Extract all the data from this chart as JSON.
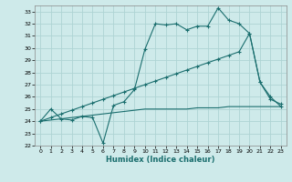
{
  "xlabel": "Humidex (Indice chaleur)",
  "bg_color": "#ceeaea",
  "grid_color": "#aed4d4",
  "line_color": "#1a6e6e",
  "ylim": [
    22,
    33.5
  ],
  "xlim": [
    -0.5,
    23.5
  ],
  "yticks": [
    22,
    23,
    24,
    25,
    26,
    27,
    28,
    29,
    30,
    31,
    32,
    33
  ],
  "xticks": [
    0,
    1,
    2,
    3,
    4,
    5,
    6,
    7,
    8,
    9,
    10,
    11,
    12,
    13,
    14,
    15,
    16,
    17,
    18,
    19,
    20,
    21,
    22,
    23
  ],
  "series1_x": [
    0,
    1,
    2,
    3,
    4,
    5,
    6,
    7,
    8,
    9,
    10,
    11,
    12,
    13,
    14,
    15,
    16,
    17,
    18,
    19,
    20,
    21,
    22,
    23
  ],
  "series1_y": [
    24.0,
    25.0,
    24.2,
    24.1,
    24.4,
    24.3,
    22.2,
    25.3,
    25.6,
    26.6,
    29.9,
    32.0,
    31.9,
    32.0,
    31.5,
    31.8,
    31.8,
    33.3,
    32.3,
    32.0,
    31.2,
    27.2,
    26.0,
    25.2
  ],
  "series2_x": [
    0,
    1,
    2,
    3,
    4,
    5,
    6,
    7,
    8,
    9,
    10,
    11,
    12,
    13,
    14,
    15,
    16,
    17,
    18,
    19,
    20,
    21,
    22,
    23
  ],
  "series2_y": [
    24.0,
    24.3,
    24.6,
    24.9,
    25.2,
    25.5,
    25.8,
    26.1,
    26.4,
    26.7,
    27.0,
    27.3,
    27.6,
    27.9,
    28.2,
    28.5,
    28.8,
    29.1,
    29.4,
    29.7,
    31.2,
    27.2,
    25.8,
    25.4
  ],
  "series3_x": [
    0,
    1,
    2,
    3,
    4,
    5,
    6,
    7,
    8,
    9,
    10,
    11,
    12,
    13,
    14,
    15,
    16,
    17,
    18,
    19,
    20,
    21,
    22,
    23
  ],
  "series3_y": [
    24.0,
    24.1,
    24.2,
    24.3,
    24.4,
    24.5,
    24.6,
    24.7,
    24.8,
    24.9,
    25.0,
    25.0,
    25.0,
    25.0,
    25.0,
    25.1,
    25.1,
    25.1,
    25.2,
    25.2,
    25.2,
    25.2,
    25.2,
    25.2
  ]
}
